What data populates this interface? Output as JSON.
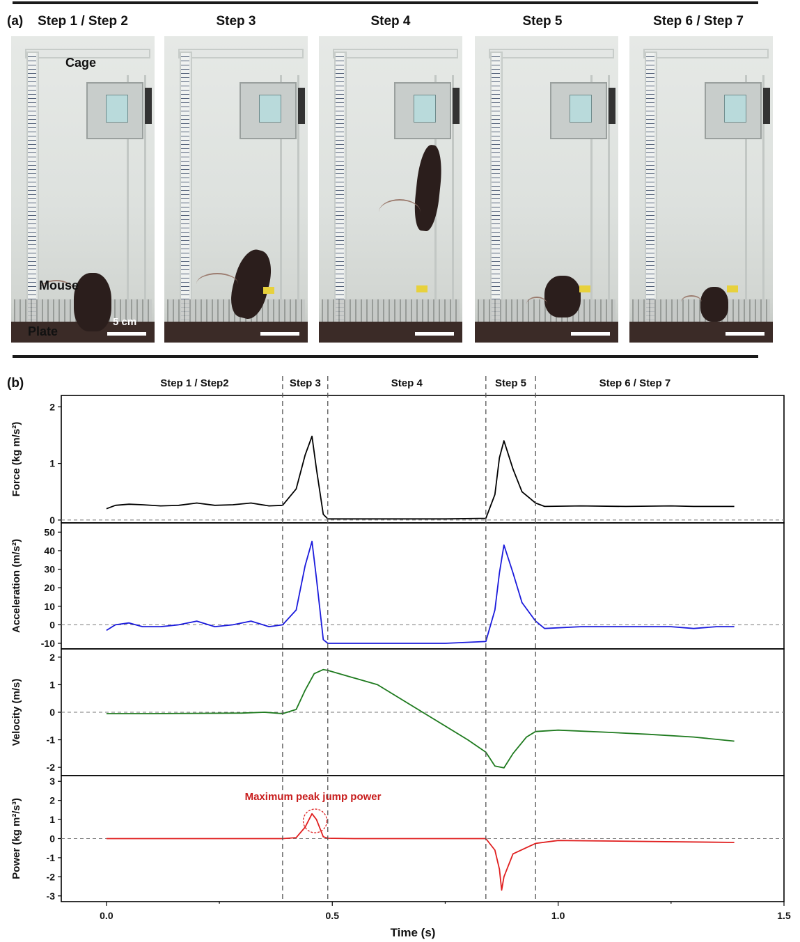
{
  "panel_a": {
    "letter": "(a)",
    "steps": [
      "Step 1 / Step 2",
      "Step 3",
      "Step 4",
      "Step 5",
      "Step 6 / Step 7"
    ],
    "labels": {
      "cage": "Cage",
      "mouse": "Mouse",
      "plate": "Plate",
      "scale": "5 cm"
    }
  },
  "panel_b": {
    "letter": "(b)"
  },
  "chart_data": {
    "type": "line",
    "phase_labels": [
      "Step 1 / Step2",
      "Step 3",
      "Step 4",
      "Step 5",
      "Step 6 / Step 7"
    ],
    "phase_boundaries": [
      0.39,
      0.49,
      0.84,
      0.95
    ],
    "xlabel": "Time (s)",
    "xlim": [
      -0.1,
      1.5
    ],
    "xticks": [
      0.0,
      0.5,
      1.0,
      1.5
    ],
    "xtick_labels": [
      "0.0",
      "0.5",
      "1.0",
      "1.5"
    ],
    "annotation": {
      "text": "Maximum  peak jump power",
      "panel": 3,
      "x": 0.465,
      "y": 1.0
    },
    "colors": [
      "#000000",
      "#1a1adc",
      "#1e7a1e",
      "#e01e1e"
    ],
    "panels": [
      {
        "ylabel": "Force (kg m/s²)",
        "ylim": [
          -0.05,
          2.2
        ],
        "yticks": [
          0,
          1,
          2
        ],
        "series": {
          "x": [
            0.0,
            0.02,
            0.05,
            0.08,
            0.12,
            0.16,
            0.2,
            0.24,
            0.28,
            0.32,
            0.36,
            0.39,
            0.42,
            0.44,
            0.455,
            0.465,
            0.48,
            0.49,
            0.55,
            0.65,
            0.75,
            0.84,
            0.86,
            0.87,
            0.88,
            0.9,
            0.92,
            0.95,
            0.97,
            1.05,
            1.15,
            1.25,
            1.3,
            1.35,
            1.39
          ],
          "y": [
            0.2,
            0.26,
            0.28,
            0.27,
            0.25,
            0.26,
            0.3,
            0.26,
            0.27,
            0.3,
            0.25,
            0.26,
            0.55,
            1.15,
            1.48,
            0.9,
            0.1,
            0.02,
            0.02,
            0.02,
            0.02,
            0.03,
            0.45,
            1.1,
            1.4,
            0.9,
            0.5,
            0.3,
            0.24,
            0.25,
            0.24,
            0.25,
            0.24,
            0.24,
            0.24
          ]
        }
      },
      {
        "ylabel": "Acceleration (m/s²)",
        "ylim": [
          -13,
          55
        ],
        "yticks": [
          -10,
          0,
          10,
          20,
          30,
          40,
          50
        ],
        "series": {
          "x": [
            0.0,
            0.02,
            0.05,
            0.08,
            0.12,
            0.16,
            0.2,
            0.24,
            0.28,
            0.32,
            0.36,
            0.39,
            0.42,
            0.44,
            0.455,
            0.465,
            0.48,
            0.49,
            0.55,
            0.65,
            0.75,
            0.84,
            0.86,
            0.87,
            0.88,
            0.9,
            0.92,
            0.95,
            0.97,
            1.05,
            1.15,
            1.25,
            1.3,
            1.35,
            1.39
          ],
          "y": [
            -3,
            0,
            1,
            -1,
            -1,
            0,
            2,
            -1,
            0,
            2,
            -1,
            0,
            8,
            32,
            45,
            25,
            -8,
            -10,
            -10,
            -10,
            -10,
            -9,
            8,
            28,
            43,
            28,
            12,
            2,
            -2,
            -1,
            -1,
            -1,
            -2,
            -1,
            -1
          ]
        }
      },
      {
        "ylabel": "Velocity (m/s)",
        "ylim": [
          -2.3,
          2.3
        ],
        "yticks": [
          -2,
          -1,
          0,
          1,
          2
        ],
        "series": {
          "x": [
            0.0,
            0.1,
            0.2,
            0.3,
            0.35,
            0.39,
            0.42,
            0.44,
            0.46,
            0.48,
            0.49,
            0.6,
            0.7,
            0.8,
            0.84,
            0.86,
            0.88,
            0.9,
            0.93,
            0.95,
            1.0,
            1.1,
            1.2,
            1.3,
            1.39
          ],
          "y": [
            -0.05,
            -0.05,
            -0.04,
            -0.03,
            0.0,
            -0.05,
            0.1,
            0.8,
            1.4,
            1.55,
            1.52,
            1.0,
            0.0,
            -1.0,
            -1.45,
            -1.95,
            -2.02,
            -1.5,
            -0.9,
            -0.7,
            -0.65,
            -0.72,
            -0.8,
            -0.9,
            -1.05
          ]
        }
      },
      {
        "ylabel": "Power (kg m²/s³)",
        "ylim": [
          -3.3,
          3.3
        ],
        "yticks": [
          -3,
          -2,
          -1,
          0,
          1,
          2,
          3
        ],
        "series": {
          "x": [
            0.0,
            0.3,
            0.39,
            0.42,
            0.44,
            0.455,
            0.465,
            0.48,
            0.49,
            0.55,
            0.84,
            0.86,
            0.87,
            0.875,
            0.88,
            0.9,
            0.95,
            1.0,
            1.2,
            1.39
          ],
          "y": [
            0.0,
            0.0,
            0.0,
            0.05,
            0.6,
            1.3,
            1.0,
            0.1,
            0.02,
            0.0,
            0.0,
            -0.6,
            -1.6,
            -2.7,
            -2.0,
            -0.8,
            -0.25,
            -0.1,
            -0.15,
            -0.2
          ]
        }
      }
    ]
  }
}
